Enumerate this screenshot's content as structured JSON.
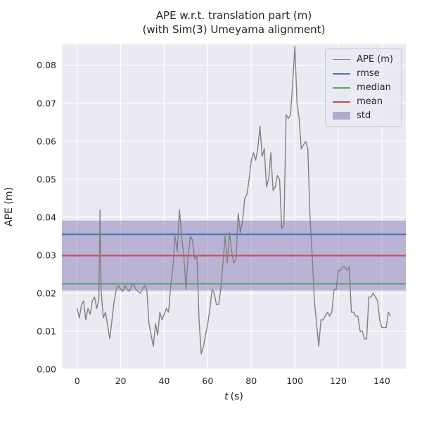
{
  "chart_data": {
    "type": "line",
    "title": "APE w.r.t. translation part (m)",
    "subtitle": "(with Sim(3) Umeyama alignment)",
    "xlabel": "t (s)",
    "xlabel_var": "t",
    "xlabel_unit": "(s)",
    "ylabel": "APE (m)",
    "xlim": [
      -7,
      151
    ],
    "ylim": [
      0,
      0.0855
    ],
    "grid": true,
    "legend_position": "upper right",
    "xticks": [
      0,
      20,
      40,
      60,
      80,
      100,
      120,
      140
    ],
    "yticks": [
      0,
      0.01,
      0.02,
      0.03,
      0.04,
      0.05,
      0.06,
      0.07,
      0.08
    ],
    "ytick_labels": [
      "0.00",
      "0.01",
      "0.02",
      "0.03",
      "0.04",
      "0.05",
      "0.06",
      "0.07",
      "0.08"
    ],
    "stats": {
      "rmse": 0.0355,
      "mean": 0.0299,
      "median": 0.0225,
      "std_band": [
        0.0207,
        0.0391
      ]
    },
    "colors": {
      "ape": "#808080",
      "rmse": "#4C72B0",
      "median": "#55A868",
      "mean": "#C44E52",
      "std": "#8172B2",
      "axes_bg": "#EAEAF2",
      "grid": "#FFFFFF",
      "text": "#262626"
    },
    "legend": [
      {
        "label": "APE (m)",
        "type": "line",
        "color_key": "ape"
      },
      {
        "label": "rmse",
        "type": "line",
        "color_key": "rmse"
      },
      {
        "label": "median",
        "type": "line",
        "color_key": "median"
      },
      {
        "label": "mean",
        "type": "line",
        "color_key": "mean"
      },
      {
        "label": "std",
        "type": "patch",
        "color_key": "std"
      }
    ],
    "series": [
      {
        "name": "APE (m)",
        "points": [
          [
            0,
            0.016
          ],
          [
            1,
            0.0135
          ],
          [
            2,
            0.017
          ],
          [
            3,
            0.018
          ],
          [
            4,
            0.013
          ],
          [
            5,
            0.016
          ],
          [
            6,
            0.0145
          ],
          [
            7,
            0.018
          ],
          [
            8,
            0.019
          ],
          [
            9,
            0.016
          ],
          [
            10,
            0.0185
          ],
          [
            10.5,
            0.042
          ],
          [
            11,
            0.021
          ],
          [
            12,
            0.0135
          ],
          [
            13,
            0.015
          ],
          [
            14,
            0.0115
          ],
          [
            15,
            0.008
          ],
          [
            16,
            0.013
          ],
          [
            17,
            0.018
          ],
          [
            18,
            0.021
          ],
          [
            19,
            0.022
          ],
          [
            20,
            0.021
          ],
          [
            21,
            0.0205
          ],
          [
            22,
            0.022
          ],
          [
            23,
            0.021
          ],
          [
            24,
            0.0205
          ],
          [
            25,
            0.022
          ],
          [
            26,
            0.0225
          ],
          [
            27,
            0.021
          ],
          [
            28,
            0.0205
          ],
          [
            29,
            0.02
          ],
          [
            30,
            0.021
          ],
          [
            31,
            0.022
          ],
          [
            32,
            0.021
          ],
          [
            33,
            0.012
          ],
          [
            34,
            0.009
          ],
          [
            35,
            0.006
          ],
          [
            36,
            0.012
          ],
          [
            37,
            0.009
          ],
          [
            38,
            0.015
          ],
          [
            39,
            0.013
          ],
          [
            40,
            0.0145
          ],
          [
            41,
            0.016
          ],
          [
            42,
            0.015
          ],
          [
            43,
            0.022
          ],
          [
            44,
            0.027
          ],
          [
            45,
            0.035
          ],
          [
            46,
            0.031
          ],
          [
            47,
            0.042
          ],
          [
            48,
            0.035
          ],
          [
            49,
            0.03
          ],
          [
            50,
            0.021
          ],
          [
            51,
            0.03
          ],
          [
            52,
            0.035
          ],
          [
            53,
            0.034
          ],
          [
            54,
            0.029
          ],
          [
            55,
            0.03
          ],
          [
            56,
            0.013
          ],
          [
            57,
            0.004
          ],
          [
            58,
            0.006
          ],
          [
            59,
            0.009
          ],
          [
            60,
            0.012
          ],
          [
            61,
            0.016
          ],
          [
            62,
            0.021
          ],
          [
            63,
            0.02
          ],
          [
            64,
            0.017
          ],
          [
            65,
            0.017
          ],
          [
            66,
            0.021
          ],
          [
            67,
            0.028
          ],
          [
            68,
            0.035
          ],
          [
            69,
            0.028
          ],
          [
            70,
            0.036
          ],
          [
            71,
            0.031
          ],
          [
            72,
            0.028
          ],
          [
            73,
            0.029
          ],
          [
            74,
            0.041
          ],
          [
            75,
            0.036
          ],
          [
            76,
            0.039
          ],
          [
            77,
            0.045
          ],
          [
            78,
            0.046
          ],
          [
            79,
            0.05
          ],
          [
            80,
            0.055
          ],
          [
            81,
            0.057
          ],
          [
            82,
            0.055
          ],
          [
            83,
            0.058
          ],
          [
            84,
            0.064
          ],
          [
            85,
            0.056
          ],
          [
            86,
            0.058
          ],
          [
            87,
            0.048
          ],
          [
            88,
            0.05
          ],
          [
            89,
            0.057
          ],
          [
            90,
            0.047
          ],
          [
            91,
            0.048
          ],
          [
            92,
            0.051
          ],
          [
            93,
            0.05
          ],
          [
            94,
            0.037
          ],
          [
            95,
            0.038
          ],
          [
            96,
            0.067
          ],
          [
            97,
            0.066
          ],
          [
            98,
            0.067
          ],
          [
            99,
            0.075
          ],
          [
            100,
            0.085
          ],
          [
            101,
            0.07
          ],
          [
            102,
            0.066
          ],
          [
            103,
            0.058
          ],
          [
            104,
            0.059
          ],
          [
            105,
            0.06
          ],
          [
            106,
            0.058
          ],
          [
            107,
            0.04
          ],
          [
            108,
            0.03
          ],
          [
            109,
            0.018
          ],
          [
            110,
            0.012
          ],
          [
            111,
            0.006
          ],
          [
            112,
            0.013
          ],
          [
            113,
            0.013
          ],
          [
            114,
            0.014
          ],
          [
            115,
            0.015
          ],
          [
            116,
            0.014
          ],
          [
            117,
            0.015
          ],
          [
            118,
            0.021
          ],
          [
            119,
            0.021
          ],
          [
            120,
            0.026
          ],
          [
            121,
            0.026
          ],
          [
            122,
            0.027
          ],
          [
            123,
            0.027
          ],
          [
            124,
            0.026
          ],
          [
            125,
            0.027
          ],
          [
            126,
            0.015
          ],
          [
            127,
            0.015
          ],
          [
            128,
            0.014
          ],
          [
            129,
            0.014
          ],
          [
            130,
            0.01
          ],
          [
            131,
            0.01
          ],
          [
            132,
            0.008
          ],
          [
            133,
            0.008
          ],
          [
            134,
            0.019
          ],
          [
            135,
            0.019
          ],
          [
            136,
            0.02
          ],
          [
            137,
            0.019
          ],
          [
            138,
            0.018
          ],
          [
            139,
            0.013
          ],
          [
            140,
            0.011
          ],
          [
            141,
            0.011
          ],
          [
            142,
            0.011
          ],
          [
            143,
            0.015
          ],
          [
            144,
            0.014
          ]
        ]
      }
    ]
  }
}
